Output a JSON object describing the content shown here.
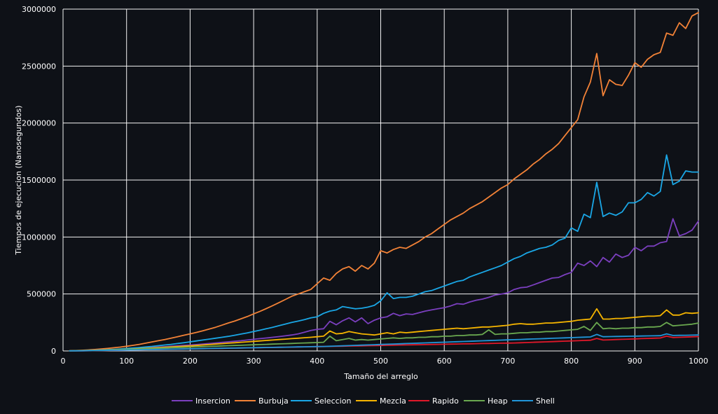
{
  "chart_data": {
    "type": "line",
    "title": "",
    "xlabel": "Tamaño del arreglo",
    "ylabel": "Tiempos de ejecucion (Nanosegundos)",
    "xlim": [
      0,
      1000
    ],
    "ylim": [
      0,
      3000000
    ],
    "x_ticks": [
      0,
      100,
      200,
      300,
      400,
      500,
      600,
      700,
      800,
      900,
      1000
    ],
    "y_ticks": [
      0,
      500000,
      1000000,
      1500000,
      2000000,
      2500000,
      3000000
    ],
    "grid": true,
    "legend_position": "bottom",
    "background": "#0e1117",
    "x": [
      10,
      20,
      30,
      40,
      50,
      60,
      70,
      80,
      90,
      100,
      110,
      120,
      130,
      140,
      150,
      160,
      170,
      180,
      190,
      200,
      210,
      220,
      230,
      240,
      250,
      260,
      270,
      280,
      290,
      300,
      310,
      320,
      330,
      340,
      350,
      360,
      370,
      380,
      390,
      400,
      410,
      420,
      430,
      440,
      450,
      460,
      470,
      480,
      490,
      500,
      510,
      520,
      530,
      540,
      550,
      560,
      570,
      580,
      590,
      600,
      610,
      620,
      630,
      640,
      650,
      660,
      670,
      680,
      690,
      700,
      710,
      720,
      730,
      740,
      750,
      760,
      770,
      780,
      790,
      800,
      810,
      820,
      830,
      840,
      850,
      860,
      870,
      880,
      890,
      900,
      910,
      920,
      930,
      940,
      950,
      960,
      970,
      980,
      990,
      1000
    ],
    "series": [
      {
        "name": "Insercion",
        "color": "#7b3fbf",
        "values": [
          1000,
          2000,
          3000,
          5000,
          7000,
          9000,
          11000,
          13000,
          16000,
          19000,
          22000,
          25000,
          28000,
          31000,
          34000,
          37000,
          41000,
          45000,
          49000,
          52000,
          56000,
          60000,
          65000,
          70000,
          75000,
          80000,
          85000,
          90000,
          96000,
          102000,
          108000,
          114000,
          120000,
          126000,
          133000,
          140000,
          150000,
          165000,
          180000,
          190000,
          195000,
          260000,
          230000,
          265000,
          290000,
          255000,
          290000,
          240000,
          270000,
          290000,
          300000,
          330000,
          310000,
          325000,
          320000,
          335000,
          350000,
          360000,
          370000,
          380000,
          395000,
          415000,
          410000,
          430000,
          445000,
          455000,
          470000,
          490000,
          500000,
          510000,
          540000,
          555000,
          560000,
          580000,
          600000,
          620000,
          640000,
          645000,
          670000,
          690000,
          770000,
          750000,
          790000,
          740000,
          820000,
          780000,
          850000,
          820000,
          840000,
          910000,
          880000,
          920000,
          920000,
          950000,
          960000,
          1160000,
          1010000,
          1030000,
          1060000,
          1140000
        ]
      },
      {
        "name": "Burbuja",
        "color": "#f28237",
        "values": [
          1500,
          3500,
          6000,
          9000,
          13000,
          17000,
          22000,
          28000,
          34000,
          41000,
          49000,
          58000,
          68000,
          79000,
          90000,
          100000,
          112000,
          125000,
          138000,
          150000,
          163000,
          177000,
          192000,
          208000,
          226000,
          245000,
          262000,
          282000,
          302000,
          325000,
          348000,
          372000,
          398000,
          425000,
          452000,
          480000,
          500000,
          520000,
          540000,
          590000,
          640000,
          620000,
          680000,
          720000,
          740000,
          700000,
          750000,
          720000,
          770000,
          880000,
          860000,
          890000,
          910000,
          900000,
          930000,
          960000,
          1000000,
          1030000,
          1070000,
          1110000,
          1150000,
          1180000,
          1210000,
          1250000,
          1280000,
          1310000,
          1350000,
          1390000,
          1430000,
          1460000,
          1510000,
          1550000,
          1590000,
          1640000,
          1680000,
          1730000,
          1770000,
          1820000,
          1890000,
          1960000,
          2030000,
          2230000,
          2360000,
          2610000,
          2240000,
          2380000,
          2340000,
          2330000,
          2420000,
          2530000,
          2490000,
          2560000,
          2600000,
          2620000,
          2790000,
          2770000,
          2880000,
          2830000,
          2940000,
          2970000
        ]
      },
      {
        "name": "Seleccion",
        "color": "#1aa7e6",
        "values": [
          1000,
          2000,
          3500,
          5000,
          7000,
          9500,
          12000,
          15000,
          18000,
          22000,
          26000,
          30000,
          35000,
          40000,
          46000,
          52000,
          58000,
          65000,
          72000,
          80000,
          88000,
          96000,
          104000,
          112000,
          120000,
          128000,
          138000,
          148000,
          158000,
          170000,
          182000,
          195000,
          208000,
          222000,
          236000,
          250000,
          262000,
          275000,
          290000,
          300000,
          330000,
          350000,
          360000,
          390000,
          380000,
          370000,
          375000,
          385000,
          400000,
          440000,
          510000,
          460000,
          470000,
          470000,
          480000,
          500000,
          520000,
          530000,
          550000,
          570000,
          590000,
          610000,
          620000,
          650000,
          670000,
          690000,
          710000,
          730000,
          750000,
          780000,
          810000,
          830000,
          860000,
          880000,
          900000,
          910000,
          930000,
          970000,
          990000,
          1080000,
          1050000,
          1200000,
          1170000,
          1480000,
          1180000,
          1210000,
          1190000,
          1220000,
          1300000,
          1300000,
          1330000,
          1390000,
          1360000,
          1400000,
          1720000,
          1460000,
          1490000,
          1580000,
          1570000,
          1570000
        ]
      },
      {
        "name": "Mezcla",
        "color": "#f5b400",
        "values": [
          1000,
          2000,
          3000,
          4500,
          6000,
          7500,
          9000,
          11000,
          13000,
          15000,
          17000,
          20000,
          23000,
          26000,
          29000,
          32000,
          35000,
          38000,
          41000,
          44000,
          48000,
          52000,
          56000,
          60000,
          64000,
          68000,
          72000,
          76000,
          80000,
          84000,
          88000,
          92000,
          96000,
          100000,
          104000,
          108000,
          112000,
          116000,
          120000,
          125000,
          130000,
          175000,
          150000,
          155000,
          170000,
          160000,
          150000,
          145000,
          140000,
          150000,
          160000,
          150000,
          165000,
          160000,
          165000,
          170000,
          175000,
          180000,
          185000,
          190000,
          195000,
          200000,
          195000,
          200000,
          205000,
          210000,
          210000,
          215000,
          220000,
          225000,
          235000,
          240000,
          235000,
          235000,
          240000,
          245000,
          245000,
          250000,
          255000,
          260000,
          270000,
          275000,
          280000,
          370000,
          280000,
          280000,
          285000,
          285000,
          290000,
          295000,
          300000,
          305000,
          305000,
          310000,
          360000,
          315000,
          315000,
          335000,
          330000,
          335000
        ]
      },
      {
        "name": "Rapido",
        "color": "#e0182a",
        "values": [
          500,
          1000,
          1500,
          2000,
          3000,
          4000,
          5000,
          6000,
          7000,
          8000,
          9000,
          10000,
          11000,
          12000,
          13000,
          14000,
          15000,
          16000,
          17000,
          18000,
          19000,
          20000,
          21000,
          22000,
          23000,
          24000,
          25000,
          26000,
          27000,
          28000,
          29000,
          30000,
          31000,
          32000,
          33000,
          34000,
          35000,
          36000,
          37000,
          38000,
          39000,
          40000,
          41000,
          42000,
          43000,
          44000,
          45000,
          46000,
          47000,
          48000,
          50000,
          51000,
          52000,
          53000,
          54000,
          55000,
          56000,
          57000,
          58000,
          59000,
          60000,
          61000,
          62000,
          63000,
          64000,
          65000,
          66000,
          67000,
          68000,
          69000,
          70000,
          72000,
          74000,
          76000,
          78000,
          80000,
          82000,
          84000,
          86000,
          88000,
          90000,
          92000,
          94000,
          110000,
          96000,
          98000,
          100000,
          102000,
          104000,
          106000,
          108000,
          110000,
          112000,
          114000,
          130000,
          118000,
          120000,
          122000,
          124000,
          126000
        ]
      },
      {
        "name": "Heap",
        "color": "#6aa84f",
        "values": [
          800,
          1600,
          2500,
          3500,
          5000,
          6500,
          8000,
          10000,
          12000,
          14000,
          16000,
          18000,
          20000,
          22000,
          24000,
          26000,
          28000,
          30000,
          32000,
          34000,
          36000,
          38000,
          40000,
          42000,
          44000,
          46000,
          48000,
          50000,
          52000,
          54000,
          56000,
          58000,
          60000,
          62000,
          64000,
          66000,
          68000,
          70000,
          72000,
          74000,
          76000,
          130000,
          90000,
          100000,
          110000,
          95000,
          100000,
          95000,
          100000,
          105000,
          110000,
          115000,
          110000,
          115000,
          115000,
          120000,
          120000,
          125000,
          125000,
          130000,
          130000,
          135000,
          135000,
          140000,
          140000,
          145000,
          185000,
          145000,
          150000,
          150000,
          155000,
          160000,
          160000,
          165000,
          165000,
          170000,
          170000,
          175000,
          180000,
          185000,
          190000,
          215000,
          180000,
          250000,
          195000,
          200000,
          195000,
          200000,
          200000,
          205000,
          205000,
          210000,
          210000,
          215000,
          250000,
          220000,
          225000,
          230000,
          235000,
          245000
        ]
      },
      {
        "name": "Shell",
        "color": "#2196d9",
        "values": [
          500,
          1000,
          1500,
          2500,
          3500,
          4500,
          5500,
          6500,
          7500,
          8500,
          9500,
          10500,
          11500,
          12500,
          13500,
          14500,
          15500,
          16500,
          17500,
          18500,
          19500,
          20500,
          21500,
          22500,
          23500,
          24500,
          25500,
          26500,
          27500,
          28500,
          29500,
          30500,
          31500,
          32500,
          33500,
          34500,
          35500,
          36500,
          37500,
          38500,
          39500,
          41000,
          43000,
          45000,
          47000,
          49000,
          51000,
          53000,
          55000,
          57000,
          59000,
          61000,
          63000,
          65000,
          67000,
          69000,
          71000,
          73000,
          75000,
          77000,
          79000,
          81000,
          83000,
          85000,
          87000,
          89000,
          91000,
          93000,
          95000,
          97000,
          99000,
          101000,
          103000,
          105000,
          107000,
          109000,
          111000,
          113000,
          115000,
          117000,
          119000,
          121000,
          123000,
          145000,
          125000,
          126000,
          127000,
          128000,
          129000,
          130000,
          131000,
          132000,
          133000,
          134000,
          150000,
          136000,
          137000,
          138000,
          139000,
          140000
        ]
      }
    ]
  }
}
